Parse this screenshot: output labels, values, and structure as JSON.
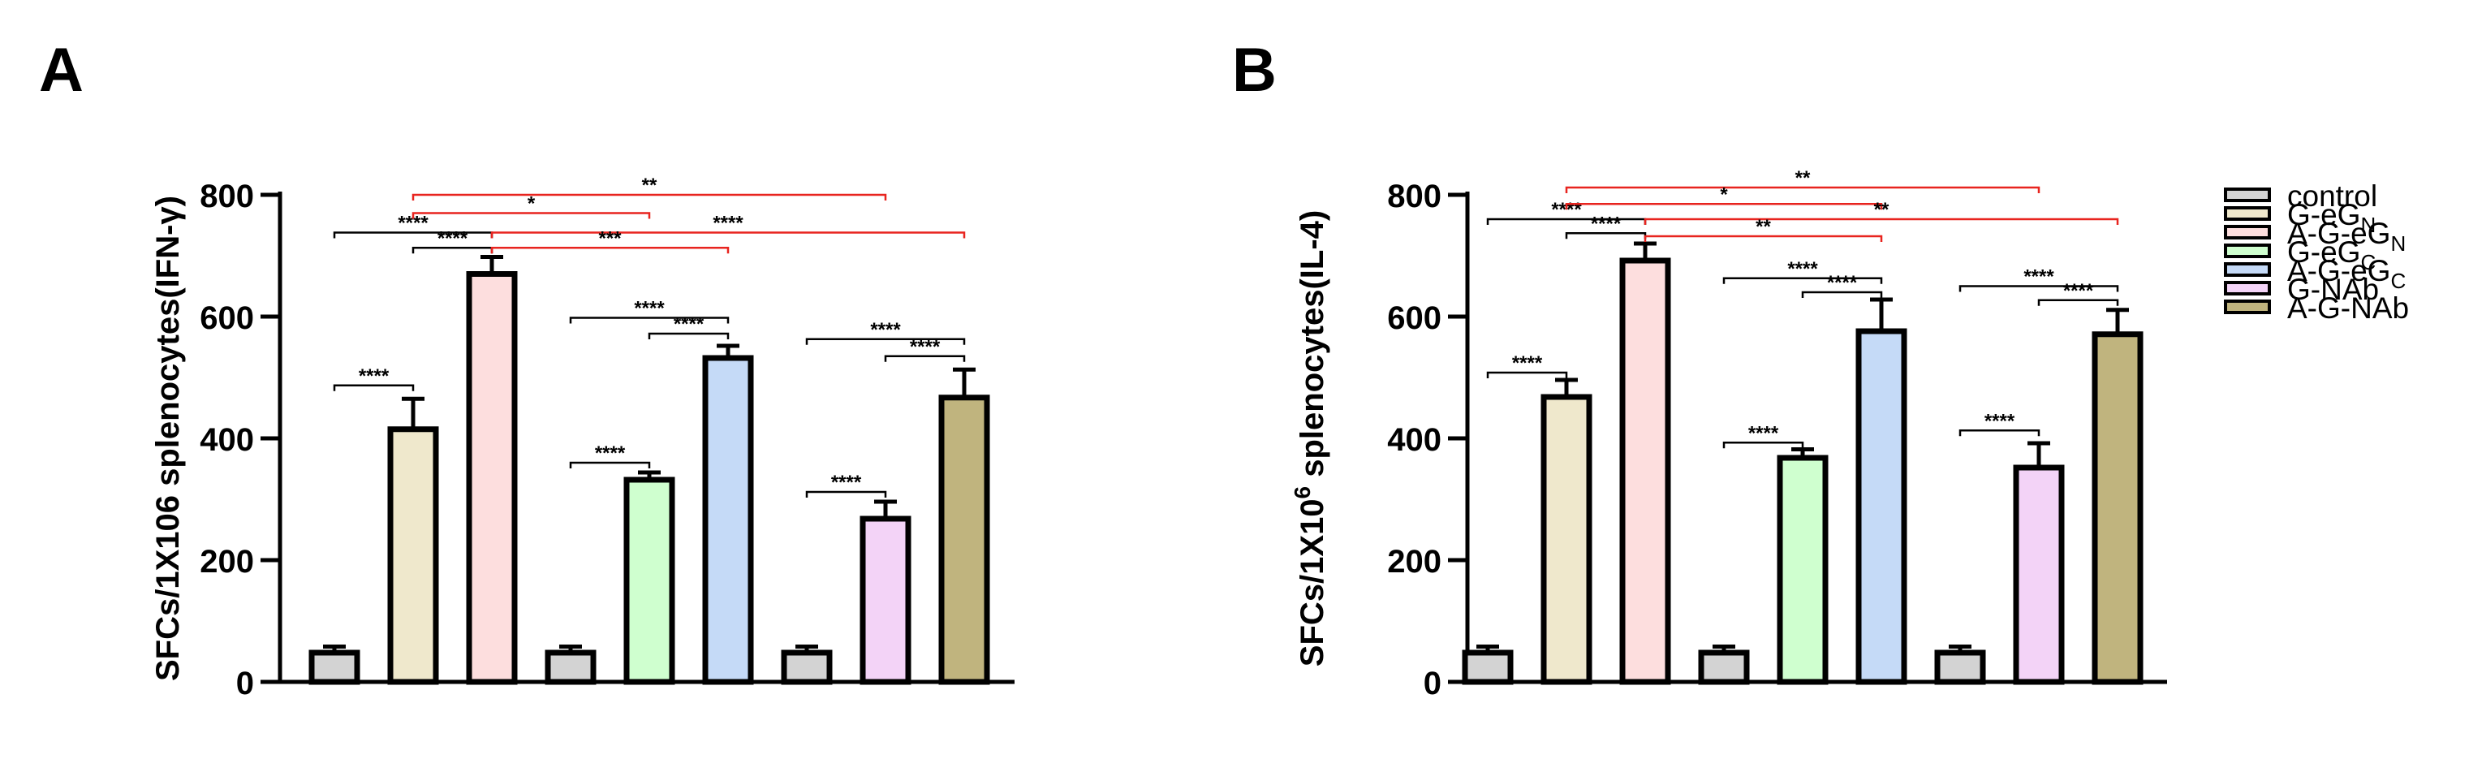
{
  "chart_data": [
    {
      "type": "bar",
      "panel_label": "A",
      "ylabel": "SFCs/1X106 splenocytes(IFN-γ)",
      "ylim": [
        0,
        800
      ],
      "yticks": [
        "0",
        "200",
        "400",
        "600",
        "800"
      ],
      "groups": [
        "control",
        "G-eG_N",
        "A-G-eG_N",
        "control",
        "G-eG_C",
        "A-G-eG_C",
        "control",
        "G-NAb",
        "A-G-NAb"
      ],
      "values": [
        48,
        415,
        670,
        48,
        332,
        532,
        48,
        268,
        467
      ],
      "errors": [
        10,
        50,
        28,
        10,
        12,
        20,
        10,
        28,
        46
      ],
      "brackets": [
        {
          "from": 0,
          "to": 1,
          "level": 487,
          "label": "****",
          "color": "black"
        },
        {
          "from": 0,
          "to": 2,
          "level": 738,
          "label": "****",
          "color": "black"
        },
        {
          "from": 1,
          "to": 2,
          "level": 713,
          "label": "****",
          "color": "black"
        },
        {
          "from": 3,
          "to": 4,
          "level": 360,
          "label": "****",
          "color": "black"
        },
        {
          "from": 3,
          "to": 5,
          "level": 598,
          "label": "****",
          "color": "black"
        },
        {
          "from": 4,
          "to": 5,
          "level": 572,
          "label": "****",
          "color": "black"
        },
        {
          "from": 6,
          "to": 7,
          "level": 312,
          "label": "****",
          "color": "black"
        },
        {
          "from": 6,
          "to": 8,
          "level": 563,
          "label": "****",
          "color": "black"
        },
        {
          "from": 7,
          "to": 8,
          "level": 535,
          "label": "****",
          "color": "black"
        },
        {
          "from": 1,
          "to": 7,
          "level": 800,
          "label": "**",
          "color": "red"
        },
        {
          "from": 1,
          "to": 4,
          "level": 770,
          "label": "*",
          "color": "red"
        },
        {
          "from": 2,
          "to": 8,
          "level": 738,
          "label": "****",
          "color": "red"
        },
        {
          "from": 2,
          "to": 5,
          "level": 713,
          "label": "***",
          "color": "red"
        }
      ]
    },
    {
      "type": "bar",
      "panel_label": "B",
      "ylabel": "SFCs/1X10",
      "ylabel_sup": "6",
      "ylabel_suffix": " splenocytes(IL-4)",
      "ylim": [
        0,
        800
      ],
      "yticks": [
        "0",
        "200",
        "400",
        "600",
        "800"
      ],
      "groups": [
        "control",
        "G-eG_N",
        "A-G-eG_N",
        "control",
        "G-eG_C",
        "A-G-eG_C",
        "control",
        "G-NAb",
        "A-G-NAb"
      ],
      "values": [
        48,
        468,
        692,
        48,
        368,
        576,
        48,
        352,
        571
      ],
      "errors": [
        10,
        28,
        28,
        10,
        14,
        52,
        10,
        40,
        40
      ],
      "brackets": [
        {
          "from": 0,
          "to": 1,
          "level": 508,
          "label": "****",
          "color": "black"
        },
        {
          "from": 0,
          "to": 2,
          "level": 760,
          "label": "****",
          "color": "black"
        },
        {
          "from": 1,
          "to": 2,
          "level": 737,
          "label": "****",
          "color": "black"
        },
        {
          "from": 3,
          "to": 4,
          "level": 393,
          "label": "****",
          "color": "black"
        },
        {
          "from": 3,
          "to": 5,
          "level": 663,
          "label": "****",
          "color": "black"
        },
        {
          "from": 4,
          "to": 5,
          "level": 640,
          "label": "****",
          "color": "black"
        },
        {
          "from": 6,
          "to": 7,
          "level": 413,
          "label": "****",
          "color": "black"
        },
        {
          "from": 6,
          "to": 8,
          "level": 650,
          "label": "****",
          "color": "black"
        },
        {
          "from": 7,
          "to": 8,
          "level": 627,
          "label": "****",
          "color": "black"
        },
        {
          "from": 1,
          "to": 7,
          "level": 812,
          "label": "**",
          "color": "red"
        },
        {
          "from": 1,
          "to": 5,
          "level": 785,
          "label": "*",
          "color": "red"
        },
        {
          "from": 2,
          "to": 8,
          "level": 760,
          "label": "**",
          "color": "red"
        },
        {
          "from": 2,
          "to": 5,
          "level": 732,
          "label": "**",
          "color": "red"
        }
      ]
    }
  ],
  "legend": {
    "position": "right",
    "entries": [
      {
        "label": "control",
        "base": "control",
        "sub": ""
      },
      {
        "label": "G-eG_N",
        "base": "G-eG",
        "sub": "N"
      },
      {
        "label": "A-G-eG_N",
        "base": "A-G-eG",
        "sub": "N"
      },
      {
        "label": "G-eG_C",
        "base": "G-eG",
        "sub": "C"
      },
      {
        "label": "A-G-eG_C",
        "base": "A-G-eG",
        "sub": "C"
      },
      {
        "label": "G-NAb",
        "base": "G-NAb",
        "sub": ""
      },
      {
        "label": "A-G-NAb",
        "base": "A-G-NAb",
        "sub": ""
      }
    ]
  },
  "colors": {
    "bar_fills": [
      "#d3d3d3",
      "#efe8cc",
      "#fddede",
      "#d3d3d3",
      "#cfffcf",
      "#c5daf7",
      "#d3d3d3",
      "#f3d3f7",
      "#c0b47e"
    ],
    "legend_fills": [
      "#d3d3d3",
      "#efe8cc",
      "#fddede",
      "#cfffcf",
      "#c5daf7",
      "#f3d3f7",
      "#c0b47e"
    ],
    "outline": "#000000",
    "significance_black": "#000000",
    "significance_red": "#e8241f"
  }
}
